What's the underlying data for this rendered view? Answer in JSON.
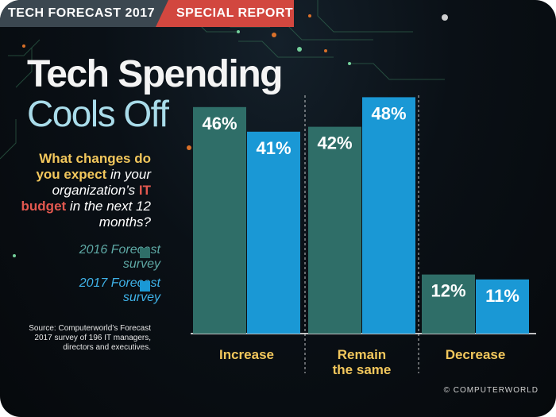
{
  "header": {
    "left_label": "TECH FORECAST 2017",
    "right_label": "SPECIAL REPORT"
  },
  "title": {
    "line1": "Tech Spending",
    "line2": "Cools Off"
  },
  "question": {
    "part1": "What changes do",
    "part2": "you expect",
    "part3": " in your organization’s ",
    "part4": "IT budget",
    "part5": " in the next 12 months?"
  },
  "legend": {
    "item_2016": "2016 Forecast survey",
    "item_2017": "2017 Forecast survey"
  },
  "source": "Source: Computerworld’s Forecast 2017 survey of 196 IT managers, directors and executives.",
  "copyright": "© COMPUTERWORLD",
  "colors": {
    "series_2016": "#2f6e68",
    "series_2017": "#1a98d5",
    "category_text": "#f2c75c",
    "header_left": "#3b4750",
    "header_right": "#d2473f"
  },
  "chart_data": {
    "type": "bar",
    "categories": [
      "Increase",
      "Remain\nthe same",
      "Decrease"
    ],
    "series": [
      {
        "name": "2016 Forecast survey",
        "values": [
          46,
          42,
          12
        ]
      },
      {
        "name": "2017 Forecast survey",
        "values": [
          41,
          48,
          11
        ]
      }
    ],
    "value_labels": [
      [
        "46%",
        "42%",
        "12%"
      ],
      [
        "41%",
        "48%",
        "11%"
      ]
    ],
    "ylim": [
      0,
      50
    ],
    "grid": false,
    "legend_position": "left"
  }
}
